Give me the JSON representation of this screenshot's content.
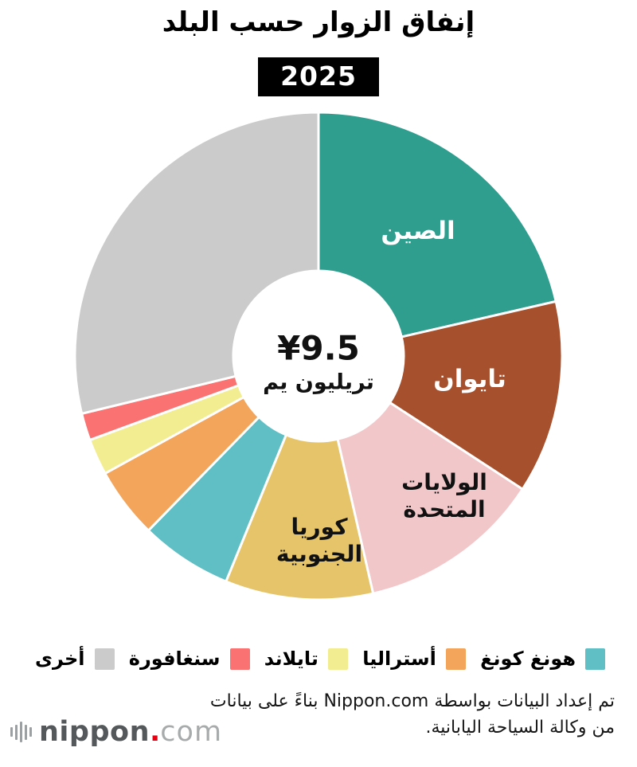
{
  "title": "إنفاق الزوار حسب البلد",
  "year": "2025",
  "center": {
    "value": "¥9.5",
    "unit": "تريليون يم"
  },
  "chart_data": {
    "type": "pie",
    "donut": true,
    "title": "إنفاق الزوار حسب البلد",
    "subtitle": "2025",
    "center_total": "¥9.5 تريليون يم",
    "start_angle_deg": 0,
    "direction": "clockwise",
    "series": [
      {
        "name": "الصين",
        "percent": 21.4,
        "color": "#2F9E8F",
        "label_lines": [
          "الصين"
        ],
        "label_color": "#ffffff"
      },
      {
        "name": "تايوان",
        "percent": 12.8,
        "color": "#A7502D",
        "label_lines": [
          "تايوان"
        ],
        "label_color": "#ffffff"
      },
      {
        "name": "الولايات المتحدة",
        "percent": 12.2,
        "color": "#F2C7C9",
        "label_lines": [
          "الولايات",
          "المتحدة"
        ],
        "label_color": "#111111"
      },
      {
        "name": "كوريا الجنوبية",
        "percent": 9.8,
        "color": "#E6C469",
        "label_lines": [
          "كوريا",
          "الجنوبية"
        ],
        "label_color": "#111111"
      },
      {
        "name": "هونغ كونغ",
        "percent": 6.1,
        "color": "#5FBFC5"
      },
      {
        "name": "أستراليا",
        "percent": 4.7,
        "color": "#F3A55C"
      },
      {
        "name": "تايلاند",
        "percent": 2.4,
        "color": "#F2ED90"
      },
      {
        "name": "سنغافورة",
        "percent": 1.8,
        "color": "#FB7272"
      },
      {
        "name": "أخرى",
        "percent": 28.8,
        "color": "#CBCBCB"
      }
    ]
  },
  "legend": [
    {
      "label": "هونغ كونغ",
      "color": "#5FBFC5"
    },
    {
      "label": "أستراليا",
      "color": "#F3A55C"
    },
    {
      "label": "تايلاند",
      "color": "#F2ED90"
    },
    {
      "label": "سنغافورة",
      "color": "#FB7272"
    },
    {
      "label": "أخرى",
      "color": "#CBCBCB"
    }
  ],
  "attribution": {
    "line1": "تم إعداد البيانات بواسطة Nippon.com بناءً على بيانات",
    "line2": "من وكالة السياحة اليابانية."
  },
  "logo": {
    "word": "nippon",
    "dot": ".",
    "tld": "com"
  }
}
